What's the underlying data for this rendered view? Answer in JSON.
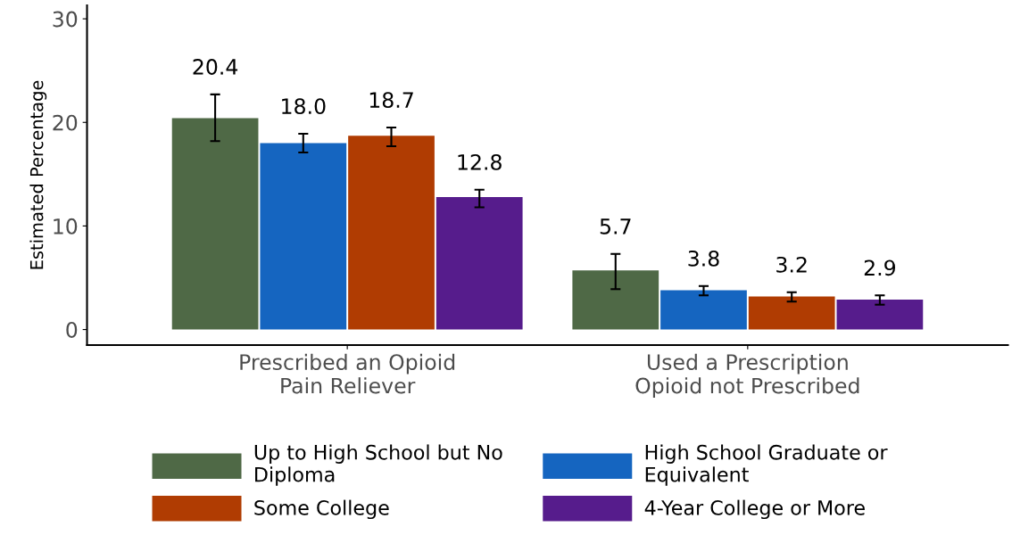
{
  "chart_data": {
    "type": "bar",
    "ylabel": "Estimated Percentage",
    "categories": [
      "Prescribed an Opioid\nPain Reliever",
      "Used a Prescription\nOpioid not Prescribed"
    ],
    "series": [
      {
        "name": "Up to High School but No\nDiploma",
        "color": "#4f6946",
        "values": [
          20.4,
          5.7
        ],
        "errors": [
          [
            18.2,
            22.7
          ],
          [
            3.9,
            7.3
          ]
        ],
        "value_labels": [
          "20.4",
          "5.7"
        ]
      },
      {
        "name": "High School Graduate or\nEquivalent",
        "color": "#1565c0",
        "values": [
          18.0,
          3.8
        ],
        "errors": [
          [
            17.1,
            18.9
          ],
          [
            3.3,
            4.2
          ]
        ],
        "value_labels": [
          "18.0",
          "3.8"
        ]
      },
      {
        "name": "Some College",
        "color": "#b03c02",
        "values": [
          18.7,
          3.2
        ],
        "errors": [
          [
            17.7,
            19.5
          ],
          [
            2.7,
            3.6
          ]
        ],
        "value_labels": [
          "18.7",
          "3.2"
        ]
      },
      {
        "name": "4-Year College or More",
        "color": "#561c8c",
        "values": [
          12.8,
          2.9
        ],
        "errors": [
          [
            11.8,
            13.5
          ],
          [
            2.4,
            3.3
          ]
        ],
        "value_labels": [
          "12.8",
          "2.9"
        ]
      }
    ],
    "ylim": [
      -1.5,
      31.3
    ],
    "yticks": [
      0,
      10,
      20,
      30
    ],
    "grid": false,
    "legend": "bottom"
  }
}
